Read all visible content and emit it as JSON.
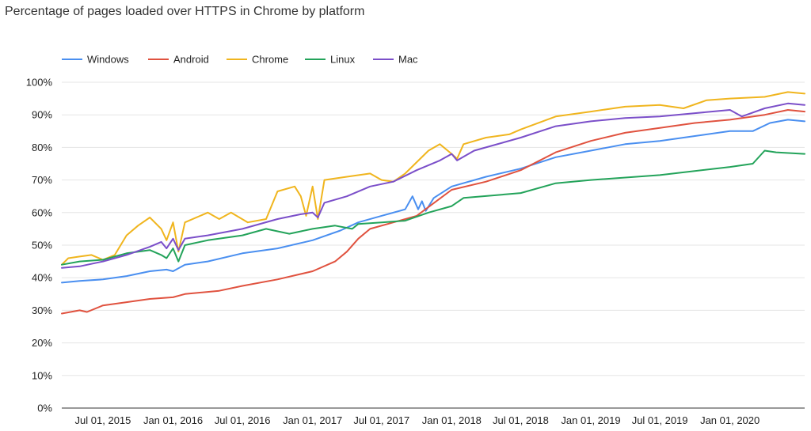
{
  "chart_data": {
    "type": "line",
    "title": "Percentage of pages loaded over HTTPS in Chrome by platform",
    "xlabel": "",
    "ylabel": "",
    "ylim": [
      0,
      100
    ],
    "xlim": [
      "2015-03-15",
      "2020-07-15"
    ],
    "y_ticks": [
      "0%",
      "10%",
      "20%",
      "30%",
      "40%",
      "50%",
      "60%",
      "70%",
      "80%",
      "90%",
      "100%"
    ],
    "x_ticks": [
      {
        "date": "2015-07-01",
        "label": "Jul 01, 2015"
      },
      {
        "date": "2016-01-01",
        "label": "Jan 01, 2016"
      },
      {
        "date": "2016-07-01",
        "label": "Jul 01, 2016"
      },
      {
        "date": "2017-01-01",
        "label": "Jan 01, 2017"
      },
      {
        "date": "2017-07-01",
        "label": "Jul 01, 2017"
      },
      {
        "date": "2018-01-01",
        "label": "Jan 01, 2018"
      },
      {
        "date": "2018-07-01",
        "label": "Jul 01, 2018"
      },
      {
        "date": "2019-01-01",
        "label": "Jan 01, 2019"
      },
      {
        "date": "2019-07-01",
        "label": "Jul 01, 2019"
      },
      {
        "date": "2020-01-01",
        "label": "Jan 01, 2020"
      }
    ],
    "grid": true,
    "legend_position": "top-left",
    "series": [
      {
        "name": "Windows",
        "color": "#4a8ff0",
        "points": [
          [
            "2015-03-15",
            38.5
          ],
          [
            "2015-05-01",
            39.0
          ],
          [
            "2015-07-01",
            39.5
          ],
          [
            "2015-09-01",
            40.5
          ],
          [
            "2015-11-01",
            42.0
          ],
          [
            "2015-12-15",
            42.5
          ],
          [
            "2016-01-01",
            42.0
          ],
          [
            "2016-02-01",
            44.0
          ],
          [
            "2016-04-01",
            45.0
          ],
          [
            "2016-07-01",
            47.5
          ],
          [
            "2016-10-01",
            49.0
          ],
          [
            "2017-01-01",
            51.5
          ],
          [
            "2017-03-15",
            54.5
          ],
          [
            "2017-05-01",
            57.0
          ],
          [
            "2017-07-01",
            59.0
          ],
          [
            "2017-09-01",
            61.0
          ],
          [
            "2017-09-20",
            65.0
          ],
          [
            "2017-10-05",
            61.0
          ],
          [
            "2017-10-15",
            63.5
          ],
          [
            "2017-10-25",
            60.5
          ],
          [
            "2017-11-15",
            64.5
          ],
          [
            "2018-01-01",
            68.0
          ],
          [
            "2018-04-01",
            71.0
          ],
          [
            "2018-07-01",
            73.5
          ],
          [
            "2018-10-01",
            77.0
          ],
          [
            "2019-01-01",
            79.0
          ],
          [
            "2019-04-01",
            81.0
          ],
          [
            "2019-07-01",
            82.0
          ],
          [
            "2019-10-01",
            83.5
          ],
          [
            "2020-01-01",
            85.0
          ],
          [
            "2020-03-01",
            85.0
          ],
          [
            "2020-04-15",
            87.5
          ],
          [
            "2020-06-01",
            88.5
          ],
          [
            "2020-07-15",
            88.0
          ]
        ]
      },
      {
        "name": "Android",
        "color": "#e0523f",
        "points": [
          [
            "2015-03-15",
            29.0
          ],
          [
            "2015-05-01",
            30.0
          ],
          [
            "2015-05-20",
            29.5
          ],
          [
            "2015-07-01",
            31.5
          ],
          [
            "2015-09-01",
            32.5
          ],
          [
            "2015-11-01",
            33.5
          ],
          [
            "2016-01-01",
            34.0
          ],
          [
            "2016-02-01",
            35.0
          ],
          [
            "2016-05-01",
            36.0
          ],
          [
            "2016-07-01",
            37.5
          ],
          [
            "2016-10-01",
            39.5
          ],
          [
            "2017-01-01",
            42.0
          ],
          [
            "2017-03-01",
            45.0
          ],
          [
            "2017-04-01",
            48.0
          ],
          [
            "2017-05-01",
            52.0
          ],
          [
            "2017-06-01",
            55.0
          ],
          [
            "2017-08-01",
            57.0
          ],
          [
            "2017-10-01",
            59.0
          ],
          [
            "2018-01-01",
            67.0
          ],
          [
            "2018-04-01",
            69.5
          ],
          [
            "2018-07-01",
            73.0
          ],
          [
            "2018-10-01",
            78.5
          ],
          [
            "2019-01-01",
            82.0
          ],
          [
            "2019-04-01",
            84.5
          ],
          [
            "2019-07-01",
            86.0
          ],
          [
            "2019-10-01",
            87.5
          ],
          [
            "2020-01-01",
            88.5
          ],
          [
            "2020-04-01",
            90.0
          ],
          [
            "2020-06-01",
            91.5
          ],
          [
            "2020-07-15",
            91.0
          ]
        ]
      },
      {
        "name": "Chrome",
        "color": "#f0b51e",
        "points": [
          [
            "2015-03-15",
            44.0
          ],
          [
            "2015-04-01",
            46.0
          ],
          [
            "2015-05-01",
            46.5
          ],
          [
            "2015-06-01",
            47.0
          ],
          [
            "2015-07-01",
            45.5
          ],
          [
            "2015-08-01",
            47.0
          ],
          [
            "2015-09-01",
            53.0
          ],
          [
            "2015-10-01",
            56.0
          ],
          [
            "2015-11-01",
            58.5
          ],
          [
            "2015-12-01",
            55.0
          ],
          [
            "2015-12-15",
            51.5
          ],
          [
            "2016-01-01",
            57.0
          ],
          [
            "2016-01-15",
            48.0
          ],
          [
            "2016-02-01",
            57.0
          ],
          [
            "2016-04-01",
            60.0
          ],
          [
            "2016-05-01",
            58.0
          ],
          [
            "2016-06-01",
            60.0
          ],
          [
            "2016-07-15",
            57.0
          ],
          [
            "2016-09-01",
            58.0
          ],
          [
            "2016-10-01",
            66.5
          ],
          [
            "2016-11-15",
            68.0
          ],
          [
            "2016-12-01",
            65.0
          ],
          [
            "2016-12-15",
            59.0
          ],
          [
            "2017-01-01",
            68.0
          ],
          [
            "2017-01-15",
            58.0
          ],
          [
            "2017-02-01",
            70.0
          ],
          [
            "2017-04-01",
            71.0
          ],
          [
            "2017-06-01",
            72.0
          ],
          [
            "2017-07-01",
            70.0
          ],
          [
            "2017-08-01",
            69.5
          ],
          [
            "2017-09-01",
            72.0
          ],
          [
            "2017-11-01",
            79.0
          ],
          [
            "2017-12-01",
            81.0
          ],
          [
            "2018-01-01",
            78.0
          ],
          [
            "2018-01-15",
            76.5
          ],
          [
            "2018-02-01",
            81.0
          ],
          [
            "2018-04-01",
            83.0
          ],
          [
            "2018-06-01",
            84.0
          ],
          [
            "2018-07-01",
            85.5
          ],
          [
            "2018-10-01",
            89.5
          ],
          [
            "2019-01-01",
            91.0
          ],
          [
            "2019-04-01",
            92.5
          ],
          [
            "2019-07-01",
            93.0
          ],
          [
            "2019-09-01",
            92.0
          ],
          [
            "2019-11-01",
            94.5
          ],
          [
            "2020-01-01",
            95.0
          ],
          [
            "2020-04-01",
            95.5
          ],
          [
            "2020-06-01",
            97.0
          ],
          [
            "2020-07-15",
            96.5
          ]
        ]
      },
      {
        "name": "Linux",
        "color": "#23a35a",
        "points": [
          [
            "2015-03-15",
            44.0
          ],
          [
            "2015-05-01",
            45.0
          ],
          [
            "2015-07-01",
            45.5
          ],
          [
            "2015-09-01",
            47.5
          ],
          [
            "2015-11-01",
            48.5
          ],
          [
            "2015-12-01",
            47.0
          ],
          [
            "2015-12-15",
            46.0
          ],
          [
            "2016-01-01",
            49.0
          ],
          [
            "2016-01-15",
            45.0
          ],
          [
            "2016-02-01",
            50.0
          ],
          [
            "2016-04-01",
            51.5
          ],
          [
            "2016-07-01",
            53.0
          ],
          [
            "2016-09-01",
            55.0
          ],
          [
            "2016-11-01",
            53.5
          ],
          [
            "2017-01-01",
            55.0
          ],
          [
            "2017-03-01",
            56.0
          ],
          [
            "2017-04-15",
            55.0
          ],
          [
            "2017-05-01",
            56.5
          ],
          [
            "2017-07-01",
            57.0
          ],
          [
            "2017-09-01",
            57.5
          ],
          [
            "2017-11-01",
            60.0
          ],
          [
            "2018-01-01",
            62.0
          ],
          [
            "2018-02-01",
            64.5
          ],
          [
            "2018-07-01",
            66.0
          ],
          [
            "2018-10-01",
            69.0
          ],
          [
            "2019-01-01",
            70.0
          ],
          [
            "2019-07-01",
            71.5
          ],
          [
            "2020-01-01",
            74.0
          ],
          [
            "2020-03-01",
            75.0
          ],
          [
            "2020-04-01",
            79.0
          ],
          [
            "2020-05-01",
            78.5
          ],
          [
            "2020-07-15",
            78.0
          ]
        ]
      },
      {
        "name": "Mac",
        "color": "#7b4fc9",
        "points": [
          [
            "2015-03-15",
            43.0
          ],
          [
            "2015-05-01",
            43.5
          ],
          [
            "2015-07-01",
            45.0
          ],
          [
            "2015-09-01",
            47.0
          ],
          [
            "2015-11-01",
            49.5
          ],
          [
            "2015-12-01",
            51.0
          ],
          [
            "2015-12-15",
            49.0
          ],
          [
            "2016-01-01",
            52.0
          ],
          [
            "2016-01-15",
            48.5
          ],
          [
            "2016-02-01",
            52.0
          ],
          [
            "2016-04-01",
            53.0
          ],
          [
            "2016-07-01",
            55.0
          ],
          [
            "2016-10-01",
            58.0
          ],
          [
            "2016-12-01",
            59.5
          ],
          [
            "2017-01-01",
            60.0
          ],
          [
            "2017-01-15",
            58.5
          ],
          [
            "2017-02-01",
            63.0
          ],
          [
            "2017-04-01",
            65.0
          ],
          [
            "2017-06-01",
            68.0
          ],
          [
            "2017-08-01",
            69.5
          ],
          [
            "2017-10-01",
            73.0
          ],
          [
            "2017-12-01",
            76.0
          ],
          [
            "2018-01-01",
            78.0
          ],
          [
            "2018-01-15",
            76.0
          ],
          [
            "2018-03-01",
            79.0
          ],
          [
            "2018-07-01",
            83.0
          ],
          [
            "2018-10-01",
            86.5
          ],
          [
            "2019-01-01",
            88.0
          ],
          [
            "2019-04-01",
            89.0
          ],
          [
            "2019-07-01",
            89.5
          ],
          [
            "2019-10-01",
            90.5
          ],
          [
            "2020-01-01",
            91.5
          ],
          [
            "2020-02-01",
            89.5
          ],
          [
            "2020-04-01",
            92.0
          ],
          [
            "2020-06-01",
            93.5
          ],
          [
            "2020-07-15",
            93.0
          ]
        ]
      }
    ]
  }
}
